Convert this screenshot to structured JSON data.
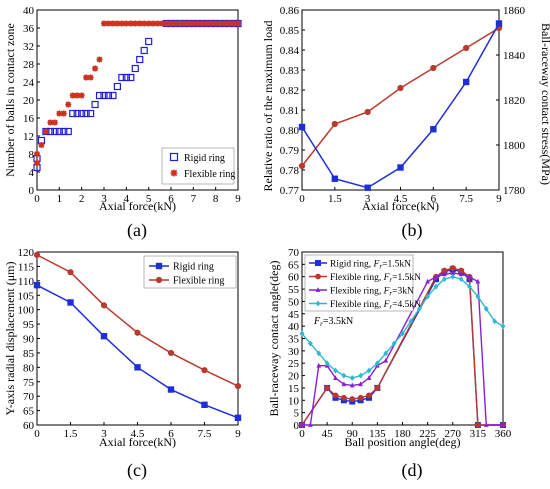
{
  "chart_data": [
    {
      "panel_label": "(a)",
      "type": "scatter",
      "xlabel": "Axial force(kN)",
      "ylabel": "Number of balls in contact zone",
      "xlim": [
        0,
        9
      ],
      "ylim": [
        0,
        40
      ],
      "xticks": [
        0,
        1,
        2,
        3,
        4,
        5,
        6,
        7,
        8,
        9
      ],
      "yticks": [
        0,
        4,
        8,
        12,
        16,
        20,
        24,
        28,
        32,
        36,
        40
      ],
      "legend_position": "bottom-right",
      "series": [
        {
          "name": "Rigid ring",
          "color": "#2020d0",
          "marker": "square",
          "points": [
            [
              0,
              5
            ],
            [
              0,
              7
            ],
            [
              0.2,
              11
            ],
            [
              0.4,
              13
            ],
            [
              0.6,
              13
            ],
            [
              0.8,
              13
            ],
            [
              1.0,
              13
            ],
            [
              1.2,
              13
            ],
            [
              1.4,
              13
            ],
            [
              1.6,
              17
            ],
            [
              1.8,
              17
            ],
            [
              2.0,
              17
            ],
            [
              2.2,
              17
            ],
            [
              2.4,
              17
            ],
            [
              2.6,
              19
            ],
            [
              2.8,
              21
            ],
            [
              3.0,
              21
            ],
            [
              3.2,
              21
            ],
            [
              3.4,
              21
            ],
            [
              3.6,
              23
            ],
            [
              3.8,
              25
            ],
            [
              4.0,
              25
            ],
            [
              4.2,
              25
            ],
            [
              4.4,
              27
            ],
            [
              4.6,
              29
            ],
            [
              4.8,
              31
            ],
            [
              5.0,
              33
            ],
            [
              5.8,
              37
            ],
            [
              6.0,
              37
            ],
            [
              6.2,
              37
            ],
            [
              6.4,
              37
            ],
            [
              6.6,
              37
            ],
            [
              6.8,
              37
            ],
            [
              7.0,
              37
            ],
            [
              7.2,
              37
            ],
            [
              7.4,
              37
            ],
            [
              7.6,
              37
            ],
            [
              7.8,
              37
            ],
            [
              8.0,
              37
            ],
            [
              8.2,
              37
            ],
            [
              8.4,
              37
            ],
            [
              8.6,
              37
            ],
            [
              8.8,
              37
            ],
            [
              9.0,
              37
            ]
          ]
        },
        {
          "name": "Flexible ring",
          "color": "#cc3020",
          "marker": "asterisk",
          "points": [
            [
              0,
              6
            ],
            [
              0,
              8
            ],
            [
              0.2,
              10
            ],
            [
              0.4,
              13
            ],
            [
              0.6,
              15
            ],
            [
              0.8,
              15
            ],
            [
              1.0,
              17
            ],
            [
              1.2,
              17
            ],
            [
              1.4,
              19
            ],
            [
              1.6,
              21
            ],
            [
              1.8,
              21
            ],
            [
              2.0,
              21
            ],
            [
              2.2,
              25
            ],
            [
              2.4,
              25
            ],
            [
              2.6,
              27
            ],
            [
              2.8,
              29
            ],
            [
              3.0,
              37
            ],
            [
              3.2,
              37
            ],
            [
              3.4,
              37
            ],
            [
              3.6,
              37
            ],
            [
              3.8,
              37
            ],
            [
              4.0,
              37
            ],
            [
              4.2,
              37
            ],
            [
              4.4,
              37
            ],
            [
              4.6,
              37
            ],
            [
              4.8,
              37
            ],
            [
              5.0,
              37
            ],
            [
              5.2,
              37
            ],
            [
              5.4,
              37
            ],
            [
              5.6,
              37
            ],
            [
              5.8,
              37
            ],
            [
              6.0,
              37
            ],
            [
              6.2,
              37
            ],
            [
              6.4,
              37
            ],
            [
              6.6,
              37
            ],
            [
              6.8,
              37
            ],
            [
              7.0,
              37
            ],
            [
              7.2,
              37
            ],
            [
              7.4,
              37
            ],
            [
              7.6,
              37
            ],
            [
              7.8,
              37
            ],
            [
              8.0,
              37
            ],
            [
              8.2,
              37
            ],
            [
              8.4,
              37
            ],
            [
              8.6,
              37
            ],
            [
              8.8,
              37
            ],
            [
              9.0,
              37
            ]
          ]
        }
      ]
    },
    {
      "panel_label": "(b)",
      "type": "line",
      "xlabel": "Axial force(kN)",
      "ylabel_left": "Relative ratio of the maximum load",
      "ylabel_right": "Ball-raceway contact stress(MPa)",
      "xlim": [
        0,
        9
      ],
      "ylim_left": [
        0.77,
        0.86
      ],
      "ylim_right": [
        1780,
        1860
      ],
      "xticks": [
        0,
        1.5,
        3,
        4.5,
        6,
        7.5,
        9
      ],
      "yticks_left": [
        0.77,
        0.78,
        0.79,
        0.8,
        0.81,
        0.82,
        0.83,
        0.84,
        0.85,
        0.86
      ],
      "yticks_right": [
        1780,
        1800,
        1820,
        1840,
        1860
      ],
      "left_axis_color": "#b83a2e",
      "right_axis_color": "#1f2fd8",
      "x": [
        0,
        1.5,
        3,
        4.5,
        6,
        7.5,
        9
      ],
      "series": [
        {
          "axis": "left",
          "color": "#b83a2e",
          "marker": "circle",
          "values": [
            0.782,
            0.803,
            0.809,
            0.821,
            0.831,
            0.841,
            0.851
          ]
        },
        {
          "axis": "right",
          "color": "#1f2fd8",
          "marker": "square",
          "values": [
            1808,
            1785,
            1781,
            1790,
            1807,
            1828,
            1854
          ]
        }
      ]
    },
    {
      "panel_label": "(c)",
      "type": "line",
      "xlabel": "Axial force(kN)",
      "ylabel": "Y-axis radial displacement (μm)",
      "xlim": [
        0,
        9
      ],
      "ylim": [
        60,
        120
      ],
      "xticks": [
        0,
        1.5,
        3,
        4.5,
        6,
        7.5,
        9
      ],
      "xticklabels": [
        "0",
        "1.5",
        "3",
        "4.5",
        "6",
        "7.5",
        "9"
      ],
      "yticks": [
        60,
        65,
        70,
        75,
        80,
        85,
        90,
        95,
        100,
        105,
        110,
        115,
        120
      ],
      "legend_position": "top-right",
      "x": [
        0,
        1.5,
        3,
        4.5,
        6,
        7.5,
        9
      ],
      "series": [
        {
          "name": "Rigid ring",
          "color": "#1f2fd8",
          "marker": "square",
          "values": [
            108.5,
            102.5,
            90.8,
            80.0,
            72.3,
            67.0,
            62.5
          ]
        },
        {
          "name": "Flexible ring",
          "color": "#b83a2e",
          "marker": "circle",
          "values": [
            119.0,
            113.0,
            101.5,
            92.0,
            85.0,
            79.0,
            73.5
          ]
        }
      ]
    },
    {
      "panel_label": "(d)",
      "type": "line",
      "xlabel": "Ball position angle(deg)",
      "ylabel": "Ball-raceway contact angle(deg)",
      "xlim": [
        0,
        360
      ],
      "ylim": [
        0,
        70
      ],
      "xticks": [
        0,
        45,
        90,
        135,
        180,
        225,
        270,
        315,
        360
      ],
      "yticks": [
        0,
        5,
        10,
        15,
        20,
        25,
        30,
        35,
        40,
        45,
        50,
        55,
        60,
        65,
        70
      ],
      "legend_position": "top-left",
      "annotation": "F_r=3.5kN",
      "series": [
        {
          "name": "Rigid ring, F_r=1.5kN",
          "legend_prefix": "Rigid ring,",
          "subscript": "F_r=1.5kN",
          "color": "#1f2fd8",
          "marker": "square",
          "x": [
            0,
            45,
            60,
            75,
            90,
            105,
            120,
            135,
            240,
            255,
            270,
            285,
            300,
            315,
            360
          ],
          "values": [
            0,
            15,
            11,
            10,
            9.5,
            10,
            11,
            15,
            59,
            62,
            63,
            62,
            59,
            0,
            0
          ]
        },
        {
          "name": "Flexible ring, F_r=1.5kN",
          "legend_prefix": "Flexible ring,",
          "subscript": "F_r=1.5kN",
          "color": "#b83a2e",
          "marker": "circle",
          "x": [
            0,
            45,
            60,
            75,
            90,
            105,
            120,
            135,
            240,
            255,
            270,
            285,
            300,
            315,
            360
          ],
          "values": [
            0,
            15,
            12,
            11,
            10.5,
            11,
            12,
            15,
            60,
            62.5,
            63.5,
            62.5,
            60,
            0,
            0
          ]
        },
        {
          "name": "Flexible ring, F_r=3kN",
          "legend_prefix": "Flexible ring,",
          "subscript": "F_r=3kN",
          "color": "#8a1fd8",
          "marker": "triangle",
          "x": [
            0,
            15,
            30,
            45,
            60,
            75,
            90,
            105,
            120,
            135,
            150,
            225,
            240,
            255,
            270,
            285,
            300,
            315,
            330,
            360
          ],
          "values": [
            0,
            0,
            24,
            24,
            19,
            16.5,
            16,
            16.5,
            19,
            24,
            26,
            58,
            60,
            61,
            61.5,
            61,
            60,
            58,
            0,
            0
          ]
        },
        {
          "name": "Flexible ring, F_r=4.5kN",
          "legend_prefix": "Flexible ring,",
          "subscript": "F_r=4.5kN",
          "color": "#30b8d0",
          "marker": "diamond",
          "x": [
            0,
            15,
            30,
            45,
            60,
            75,
            90,
            105,
            120,
            135,
            150,
            165,
            180,
            195,
            210,
            225,
            240,
            255,
            270,
            285,
            300,
            315,
            330,
            345,
            360
          ],
          "values": [
            37,
            33,
            29,
            25,
            22,
            20,
            19,
            20,
            22,
            25,
            29,
            33,
            37,
            42,
            47,
            52,
            56,
            59,
            60,
            59,
            56,
            52,
            47,
            42,
            40
          ]
        }
      ]
    }
  ]
}
